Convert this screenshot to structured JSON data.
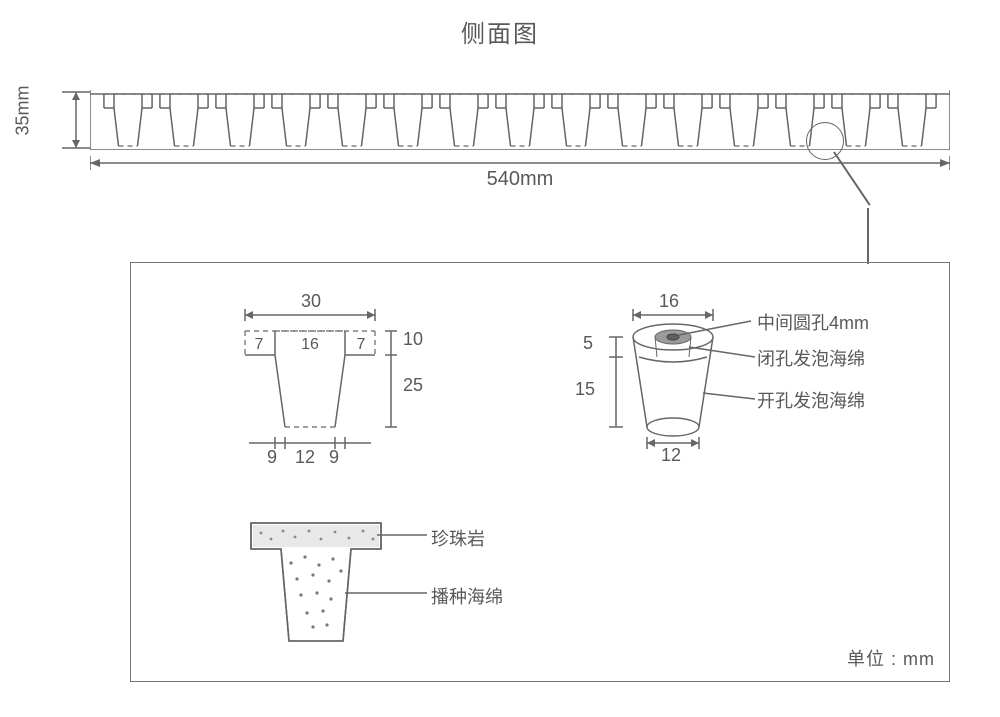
{
  "title": "侧面图",
  "unit_note": "单位 : mm",
  "colors": {
    "stroke": "#666666",
    "text": "#595959",
    "background": "#ffffff",
    "sponge_gray": "#9b9b9b",
    "sponge_light": "#d0d0d0",
    "perlite": "#e8e8e8"
  },
  "tray": {
    "height_mm_label": "35mm",
    "width_mm_label": "540mm",
    "cell_count": 15
  },
  "top_detail": {
    "top_width": "30",
    "top_segments": [
      "7",
      "16",
      "7"
    ],
    "height_upper": "10",
    "height_lower": "25",
    "bottom_segments": [
      "9",
      "12",
      "9"
    ]
  },
  "sponge_detail": {
    "top_diameter": "16",
    "bottom_diameter": "12",
    "height_top": "5",
    "height_bottom": "15",
    "center_hole": "中间圆孔4mm",
    "closed_cell": "闭孔发泡海绵",
    "open_cell": "开孔发泡海绵"
  },
  "bottom_detail": {
    "perlite": "珍珠岩",
    "seeding_sponge": "播种海绵"
  }
}
